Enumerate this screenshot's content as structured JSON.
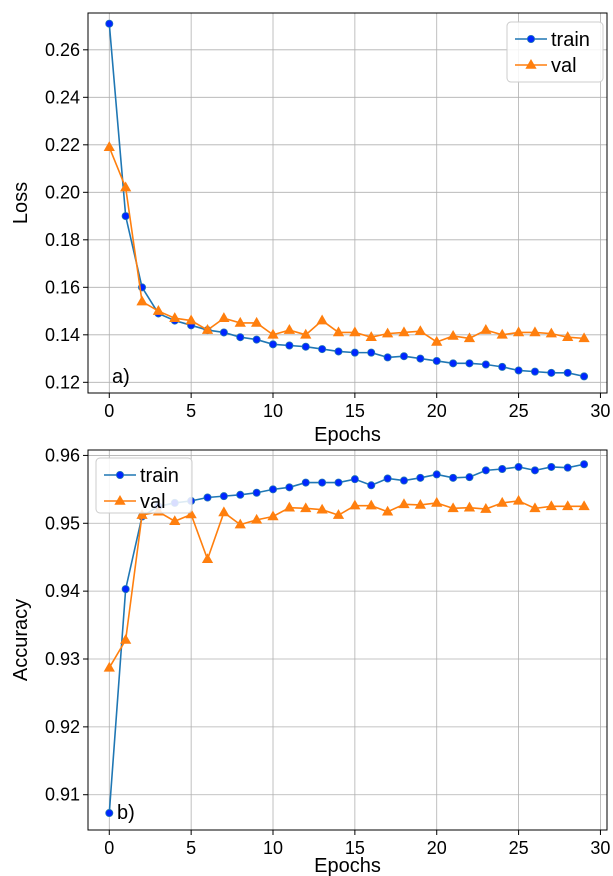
{
  "chart_data": [
    {
      "type": "line",
      "xlabel": "Epochs",
      "ylabel": "Loss",
      "panel_label": "a)",
      "xlim": [
        -1.3,
        30.4
      ],
      "ylim": [
        0.1155,
        0.2755
      ],
      "xticks": [
        0,
        5,
        10,
        15,
        20,
        25,
        30
      ],
      "yticks": [
        0.12,
        0.14,
        0.16,
        0.18,
        0.2,
        0.22,
        0.24,
        0.26
      ],
      "ytick_labels": [
        "0.12",
        "0.14",
        "0.16",
        "0.18",
        "0.20",
        "0.22",
        "0.24",
        "0.26"
      ],
      "grid": true,
      "legend_position": "top-right",
      "x": [
        0,
        1,
        2,
        3,
        4,
        5,
        6,
        7,
        8,
        9,
        10,
        11,
        12,
        13,
        14,
        15,
        16,
        17,
        18,
        19,
        20,
        21,
        22,
        23,
        24,
        25,
        26,
        27,
        28,
        29
      ],
      "series": [
        {
          "name": "train",
          "color": "#1f77b4",
          "marker_color": "#0026ff",
          "marker": "circle",
          "values": [
            0.271,
            0.19,
            0.16,
            0.149,
            0.146,
            0.144,
            0.142,
            0.141,
            0.139,
            0.138,
            0.136,
            0.1355,
            0.135,
            0.134,
            0.133,
            0.1325,
            0.1325,
            0.1305,
            0.131,
            0.13,
            0.129,
            0.128,
            0.128,
            0.1275,
            0.1265,
            0.125,
            0.1245,
            0.124,
            0.124,
            0.1225
          ]
        },
        {
          "name": "val",
          "color": "#ff7f0e",
          "marker_color": "#ff7f0e",
          "marker": "triangle",
          "values": [
            0.219,
            0.202,
            0.154,
            0.15,
            0.147,
            0.146,
            0.142,
            0.147,
            0.145,
            0.145,
            0.14,
            0.142,
            0.14,
            0.146,
            0.141,
            0.141,
            0.139,
            0.1405,
            0.141,
            0.1415,
            0.137,
            0.1395,
            0.1385,
            0.142,
            0.14,
            0.141,
            0.141,
            0.1405,
            0.139,
            0.1385
          ]
        }
      ]
    },
    {
      "type": "line",
      "xlabel": "Epochs",
      "ylabel": "Accuracy",
      "panel_label": "b)",
      "xlim": [
        -1.3,
        30.4
      ],
      "ylim": [
        0.9048,
        0.9608
      ],
      "xticks": [
        0,
        5,
        10,
        15,
        20,
        25,
        30
      ],
      "yticks": [
        0.91,
        0.92,
        0.93,
        0.94,
        0.95,
        0.96
      ],
      "ytick_labels": [
        "0.91",
        "0.92",
        "0.93",
        "0.94",
        "0.95",
        "0.96"
      ],
      "grid": true,
      "legend_position": "top-left",
      "x": [
        0,
        1,
        2,
        3,
        4,
        5,
        6,
        7,
        8,
        9,
        10,
        11,
        12,
        13,
        14,
        15,
        16,
        17,
        18,
        19,
        20,
        21,
        22,
        23,
        24,
        25,
        26,
        27,
        28,
        29
      ],
      "series": [
        {
          "name": "train",
          "color": "#1f77b4",
          "marker_color": "#0026ff",
          "marker": "circle",
          "values": [
            0.9073,
            0.9403,
            0.951,
            0.9525,
            0.953,
            0.9533,
            0.9538,
            0.954,
            0.9542,
            0.9545,
            0.955,
            0.9553,
            0.956,
            0.956,
            0.956,
            0.9565,
            0.9556,
            0.9566,
            0.9563,
            0.9567,
            0.9572,
            0.9567,
            0.9568,
            0.9578,
            0.958,
            0.9583,
            0.9578,
            0.9583,
            0.9582,
            0.9587
          ]
        },
        {
          "name": "val",
          "color": "#ff7f0e",
          "marker_color": "#ff7f0e",
          "marker": "triangle",
          "values": [
            0.9287,
            0.9328,
            0.9512,
            0.9517,
            0.9503,
            0.9513,
            0.9447,
            0.9516,
            0.9498,
            0.9505,
            0.951,
            0.9523,
            0.9522,
            0.952,
            0.9512,
            0.9526,
            0.9526,
            0.9517,
            0.9528,
            0.9527,
            0.953,
            0.9522,
            0.9523,
            0.9521,
            0.953,
            0.9533,
            0.9522,
            0.9525,
            0.9525,
            0.9525
          ]
        }
      ]
    }
  ]
}
